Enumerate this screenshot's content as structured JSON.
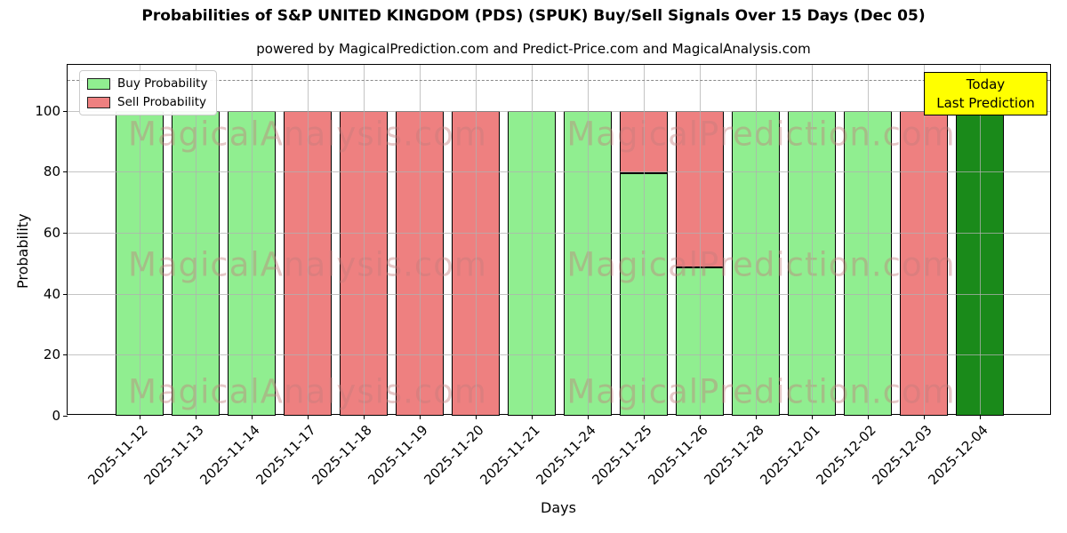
{
  "annotation": {
    "line1": "Today",
    "line2": "Last Prediction"
  },
  "watermarks": {
    "left": "MagicalAnalysis.com",
    "right": "MagicalPrediction.com"
  },
  "colors": {
    "buy": "#90EE90",
    "sell": "#EE8080",
    "today_bar": "#1A8A1A",
    "bar_edge": "#000000",
    "annotation_bg": "#FFFF00",
    "grid": "#B0B0B0",
    "watermark": "#C47D7D"
  },
  "chart_data": {
    "type": "bar",
    "stacked": true,
    "title": "Probabilities of S&P UNITED KINGDOM (PDS) (SPUK) Buy/Sell Signals Over 15 Days (Dec 05)",
    "subtitle": "powered by MagicalPrediction.com and Predict-Price.com and MagicalAnalysis.com",
    "xlabel": "Days",
    "ylabel": "Probability",
    "categories": [
      "2025-11-12",
      "2025-11-13",
      "2025-11-14",
      "2025-11-17",
      "2025-11-18",
      "2025-11-19",
      "2025-11-20",
      "2025-11-21",
      "2025-11-24",
      "2025-11-25",
      "2025-11-26",
      "2025-11-28",
      "2025-12-01",
      "2025-12-02",
      "2025-12-03",
      "2025-12-04"
    ],
    "series": [
      {
        "name": "Buy Probability",
        "color_key": "buy",
        "values": [
          100,
          100,
          100,
          0,
          0,
          0,
          0,
          100,
          100,
          79.5,
          48.5,
          100,
          100,
          100,
          0,
          100
        ]
      },
      {
        "name": "Sell Probability",
        "color_key": "sell",
        "values": [
          0,
          0,
          0,
          100,
          100,
          100,
          100,
          0,
          0,
          20.5,
          51.5,
          0,
          0,
          0,
          100,
          0
        ]
      }
    ],
    "today_index": 15,
    "yticks": [
      0,
      20,
      40,
      60,
      80,
      100
    ],
    "ylim": [
      0,
      115
    ],
    "dashed_line_y": 110,
    "grid": true,
    "legend_position": "upper left"
  }
}
